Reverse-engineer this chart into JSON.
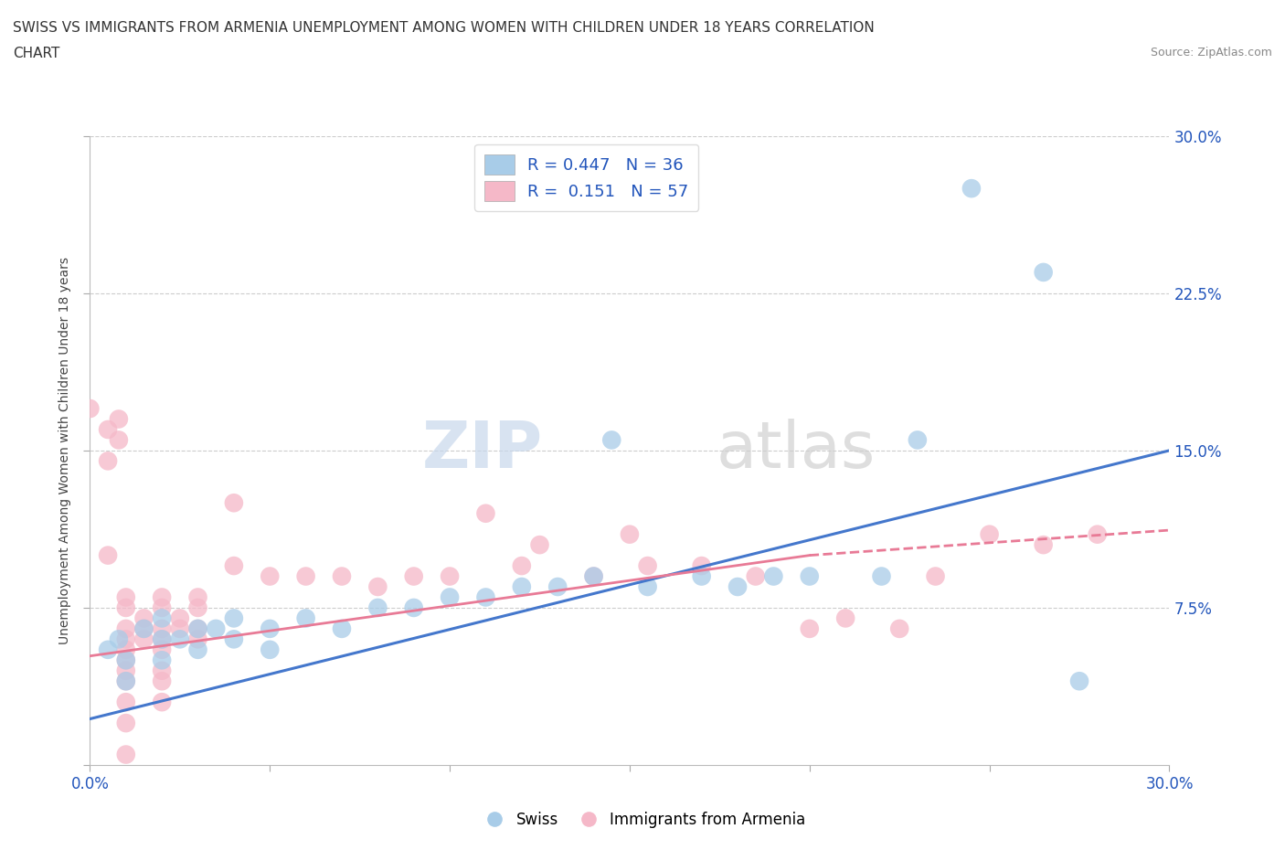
{
  "title_line1": "SWISS VS IMMIGRANTS FROM ARMENIA UNEMPLOYMENT AMONG WOMEN WITH CHILDREN UNDER 18 YEARS CORRELATION",
  "title_line2": "CHART",
  "source": "Source: ZipAtlas.com",
  "ylabel": "Unemployment Among Women with Children Under 18 years",
  "xlim": [
    0.0,
    0.3
  ],
  "ylim": [
    0.0,
    0.3
  ],
  "xticks": [
    0.0,
    0.05,
    0.1,
    0.15,
    0.2,
    0.25,
    0.3
  ],
  "yticks": [
    0.0,
    0.075,
    0.15,
    0.225,
    0.3
  ],
  "swiss_color": "#a8cce8",
  "armenia_color": "#f5b8c8",
  "swiss_line_color": "#4477cc",
  "armenia_line_color": "#e87a96",
  "r_swiss": 0.447,
  "n_swiss": 36,
  "r_armenia": 0.151,
  "n_armenia": 57,
  "watermark_zip": "ZIP",
  "watermark_atlas": "atlas",
  "legend_r_color": "#2255bb",
  "swiss_scatter": [
    [
      0.005,
      0.055
    ],
    [
      0.008,
      0.06
    ],
    [
      0.01,
      0.05
    ],
    [
      0.01,
      0.04
    ],
    [
      0.015,
      0.065
    ],
    [
      0.02,
      0.07
    ],
    [
      0.02,
      0.06
    ],
    [
      0.02,
      0.05
    ],
    [
      0.025,
      0.06
    ],
    [
      0.03,
      0.065
    ],
    [
      0.03,
      0.055
    ],
    [
      0.035,
      0.065
    ],
    [
      0.04,
      0.07
    ],
    [
      0.04,
      0.06
    ],
    [
      0.05,
      0.065
    ],
    [
      0.05,
      0.055
    ],
    [
      0.06,
      0.07
    ],
    [
      0.07,
      0.065
    ],
    [
      0.08,
      0.075
    ],
    [
      0.09,
      0.075
    ],
    [
      0.1,
      0.08
    ],
    [
      0.11,
      0.08
    ],
    [
      0.12,
      0.085
    ],
    [
      0.13,
      0.085
    ],
    [
      0.14,
      0.09
    ],
    [
      0.145,
      0.155
    ],
    [
      0.155,
      0.085
    ],
    [
      0.17,
      0.09
    ],
    [
      0.18,
      0.085
    ],
    [
      0.19,
      0.09
    ],
    [
      0.2,
      0.09
    ],
    [
      0.22,
      0.09
    ],
    [
      0.23,
      0.155
    ],
    [
      0.245,
      0.275
    ],
    [
      0.265,
      0.235
    ],
    [
      0.275,
      0.04
    ]
  ],
  "armenia_scatter": [
    [
      0.0,
      0.17
    ],
    [
      0.005,
      0.16
    ],
    [
      0.005,
      0.145
    ],
    [
      0.005,
      0.1
    ],
    [
      0.008,
      0.165
    ],
    [
      0.008,
      0.155
    ],
    [
      0.01,
      0.08
    ],
    [
      0.01,
      0.075
    ],
    [
      0.01,
      0.065
    ],
    [
      0.01,
      0.06
    ],
    [
      0.01,
      0.055
    ],
    [
      0.01,
      0.05
    ],
    [
      0.01,
      0.045
    ],
    [
      0.01,
      0.04
    ],
    [
      0.01,
      0.03
    ],
    [
      0.01,
      0.02
    ],
    [
      0.01,
      0.005
    ],
    [
      0.015,
      0.07
    ],
    [
      0.015,
      0.065
    ],
    [
      0.015,
      0.06
    ],
    [
      0.02,
      0.08
    ],
    [
      0.02,
      0.075
    ],
    [
      0.02,
      0.065
    ],
    [
      0.02,
      0.06
    ],
    [
      0.02,
      0.055
    ],
    [
      0.02,
      0.045
    ],
    [
      0.02,
      0.04
    ],
    [
      0.02,
      0.03
    ],
    [
      0.025,
      0.07
    ],
    [
      0.025,
      0.065
    ],
    [
      0.03,
      0.08
    ],
    [
      0.03,
      0.075
    ],
    [
      0.03,
      0.065
    ],
    [
      0.03,
      0.06
    ],
    [
      0.04,
      0.125
    ],
    [
      0.04,
      0.095
    ],
    [
      0.05,
      0.09
    ],
    [
      0.06,
      0.09
    ],
    [
      0.07,
      0.09
    ],
    [
      0.08,
      0.085
    ],
    [
      0.09,
      0.09
    ],
    [
      0.1,
      0.09
    ],
    [
      0.11,
      0.12
    ],
    [
      0.12,
      0.095
    ],
    [
      0.125,
      0.105
    ],
    [
      0.14,
      0.09
    ],
    [
      0.15,
      0.11
    ],
    [
      0.155,
      0.095
    ],
    [
      0.17,
      0.095
    ],
    [
      0.185,
      0.09
    ],
    [
      0.2,
      0.065
    ],
    [
      0.21,
      0.07
    ],
    [
      0.225,
      0.065
    ],
    [
      0.235,
      0.09
    ],
    [
      0.25,
      0.11
    ],
    [
      0.265,
      0.105
    ],
    [
      0.28,
      0.11
    ]
  ]
}
